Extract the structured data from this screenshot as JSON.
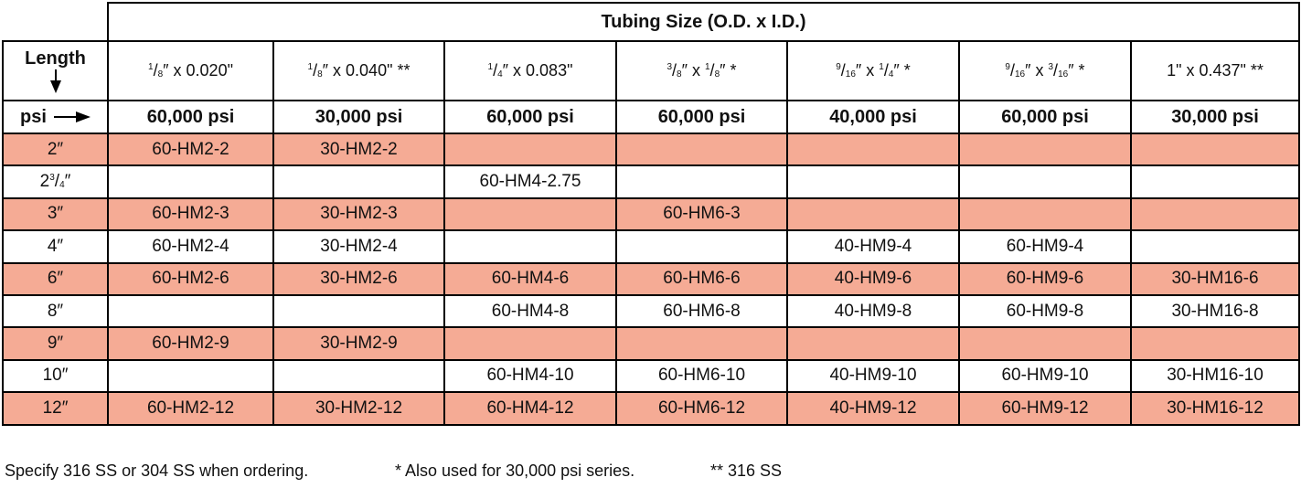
{
  "table": {
    "title": "Tubing Size (O.D. x I.D.)",
    "length_label": "Length",
    "psi_label": "psi",
    "sizes": [
      [
        {
          "frac": "1/8"
        },
        "″  x 0.020\""
      ],
      [
        {
          "frac": "1/8"
        },
        "″  x 0.040\" **"
      ],
      [
        {
          "frac": "1/4"
        },
        "″ x 0.083\""
      ],
      [
        {
          "frac": "3/8"
        },
        "″ x ",
        {
          "frac": "1/8"
        },
        "″ *"
      ],
      [
        {
          "frac": "9/16"
        },
        "″ x ",
        {
          "frac": "1/4"
        },
        "″ *"
      ],
      [
        {
          "frac": "9/16"
        },
        "″ x ",
        {
          "frac": "3/16"
        },
        "″ *"
      ],
      [
        "1\" x 0.437\" **"
      ]
    ],
    "pressures": [
      "60,000 psi",
      "30,000 psi",
      "60,000 psi",
      "60,000 psi",
      "40,000 psi",
      "60,000 psi",
      "30,000 psi"
    ],
    "rows": [
      {
        "length": [
          "2″"
        ],
        "cells": [
          "60-HM2-2",
          "30-HM2-2",
          null,
          null,
          null,
          null,
          null
        ]
      },
      {
        "length": [
          "2",
          {
            "frac": "3/4"
          },
          "″"
        ],
        "cells": [
          null,
          null,
          "60-HM4-2.75",
          null,
          null,
          null,
          null
        ]
      },
      {
        "length": [
          "3″"
        ],
        "cells": [
          "60-HM2-3",
          "30-HM2-3",
          null,
          "60-HM6-3",
          null,
          null,
          null
        ]
      },
      {
        "length": [
          "4″"
        ],
        "cells": [
          "60-HM2-4",
          "30-HM2-4",
          null,
          null,
          "40-HM9-4",
          "60-HM9-4",
          null
        ]
      },
      {
        "length": [
          "6″"
        ],
        "cells": [
          "60-HM2-6",
          "30-HM2-6",
          "60-HM4-6",
          "60-HM6-6",
          "40-HM9-6",
          "60-HM9-6",
          "30-HM16-6"
        ]
      },
      {
        "length": [
          "8″"
        ],
        "cells": [
          null,
          null,
          "60-HM4-8",
          "60-HM6-8",
          "40-HM9-8",
          "60-HM9-8",
          "30-HM16-8"
        ]
      },
      {
        "length": [
          "9″"
        ],
        "cells": [
          "60-HM2-9",
          "30-HM2-9",
          null,
          null,
          null,
          null,
          null
        ]
      },
      {
        "length": [
          "10″"
        ],
        "cells": [
          null,
          null,
          "60-HM4-10",
          "60-HM6-10",
          "40-HM9-10",
          "60-HM9-10",
          "30-HM16-10"
        ]
      },
      {
        "length": [
          "12″"
        ],
        "cells": [
          "60-HM2-12",
          "30-HM2-12",
          "60-HM4-12",
          "60-HM6-12",
          "40-HM9-12",
          "60-HM9-12",
          "30-HM16-12"
        ]
      }
    ],
    "notes": [
      "Specify 316 SS or 304 SS when ordering.",
      "* Also used for 30,000 psi series.",
      "** 316 SS"
    ]
  }
}
